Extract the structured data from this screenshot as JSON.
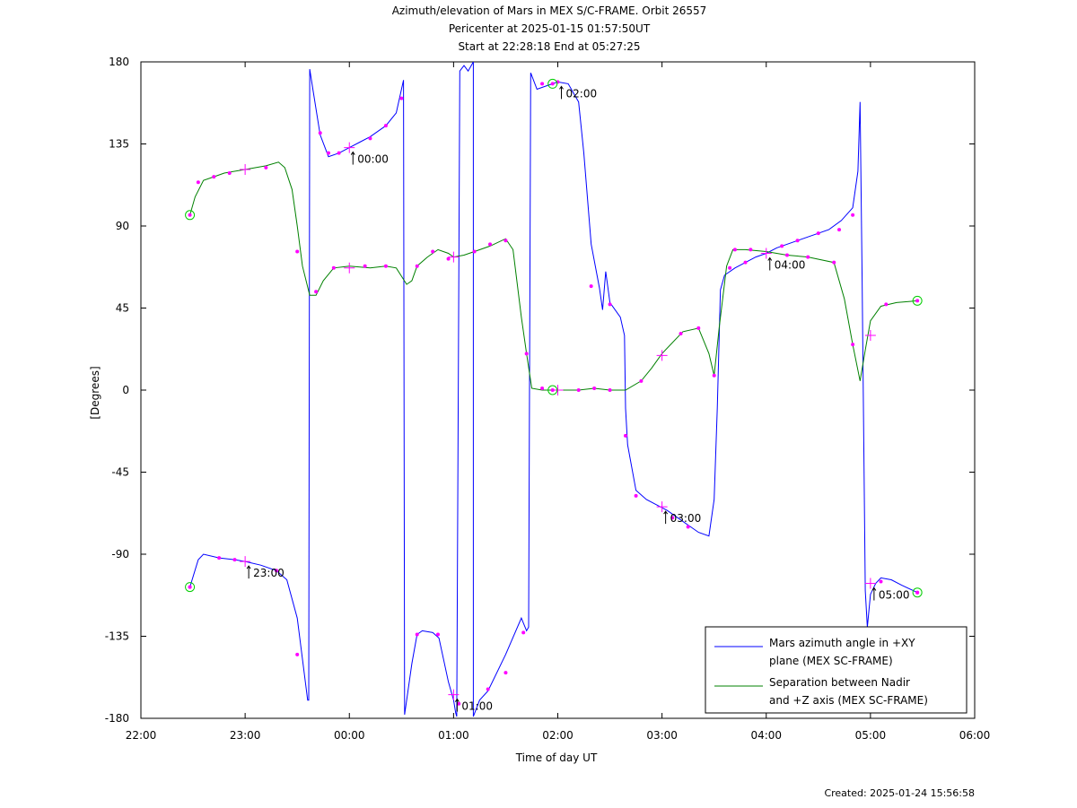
{
  "chart_data": {
    "type": "line",
    "title": "Azimuth/elevation of Mars in MEX S/C-FRAME.  Orbit 26557",
    "subtitle": [
      "Pericenter at 2025-01-15 01:57:50UT",
      "Start at 22:28:18 End at 05:27:25"
    ],
    "xlabel": "Time of day UT",
    "ylabel": "[Degrees]",
    "x_unit": "hours of day (22 = 22:00, 24 = 00:00 next day)",
    "xlim": [
      22,
      30
    ],
    "ylim": [
      -180,
      180
    ],
    "xticks": [
      {
        "value": 22,
        "label": "22:00"
      },
      {
        "value": 23,
        "label": "23:00"
      },
      {
        "value": 24,
        "label": "00:00"
      },
      {
        "value": 25,
        "label": "01:00"
      },
      {
        "value": 26,
        "label": "02:00"
      },
      {
        "value": 27,
        "label": "03:00"
      },
      {
        "value": 28,
        "label": "04:00"
      },
      {
        "value": 29,
        "label": "05:00"
      },
      {
        "value": 30,
        "label": "06:00"
      }
    ],
    "yticks": [
      {
        "value": 180,
        "label": "180"
      },
      {
        "value": 135,
        "label": "135"
      },
      {
        "value": 90,
        "label": "90"
      },
      {
        "value": 45,
        "label": "45"
      },
      {
        "value": 0,
        "label": "0"
      },
      {
        "value": -45,
        "label": "-45"
      },
      {
        "value": -90,
        "label": "-90"
      },
      {
        "value": -135,
        "label": "-135"
      },
      {
        "value": -180,
        "label": "-180"
      }
    ],
    "grid": false,
    "legend_position": "bottom-right",
    "series": [
      {
        "name": "Mars azimuth angle in +XY plane (MEX SC-FRAME)",
        "legend_lines": [
          "Mars azimuth angle in +XY",
          "plane (MEX SC-FRAME)"
        ],
        "color": "#0000ff",
        "points": [
          [
            22.47,
            -108
          ],
          [
            22.55,
            -93
          ],
          [
            22.6,
            -90
          ],
          [
            22.75,
            -92
          ],
          [
            22.9,
            -93
          ],
          [
            23.0,
            -94
          ],
          [
            23.15,
            -96
          ],
          [
            23.3,
            -99
          ],
          [
            23.4,
            -104
          ],
          [
            23.5,
            -125
          ],
          [
            23.6,
            -170
          ],
          [
            23.61,
            -170
          ],
          [
            23.62,
            176
          ],
          [
            23.65,
            165
          ],
          [
            23.72,
            140
          ],
          [
            23.8,
            128
          ],
          [
            23.9,
            130
          ],
          [
            24.0,
            133
          ],
          [
            24.1,
            136
          ],
          [
            24.2,
            139
          ],
          [
            24.35,
            145
          ],
          [
            24.45,
            152
          ],
          [
            24.52,
            170
          ],
          [
            24.53,
            -178
          ],
          [
            24.6,
            -150
          ],
          [
            24.65,
            -134
          ],
          [
            24.7,
            -132
          ],
          [
            24.8,
            -133
          ],
          [
            24.86,
            -136
          ],
          [
            24.95,
            -160
          ],
          [
            25.0,
            -170
          ],
          [
            25.02,
            -177
          ],
          [
            25.03,
            -179
          ],
          [
            25.06,
            175
          ],
          [
            25.1,
            178
          ],
          [
            25.14,
            175
          ],
          [
            25.19,
            180
          ],
          [
            25.19,
            -179
          ],
          [
            25.25,
            -170
          ],
          [
            25.33,
            -165
          ],
          [
            25.5,
            -145
          ],
          [
            25.65,
            -125
          ],
          [
            25.7,
            -132
          ],
          [
            25.72,
            -130
          ],
          [
            25.74,
            174
          ],
          [
            25.8,
            165
          ],
          [
            25.9,
            167
          ],
          [
            26.0,
            169
          ],
          [
            26.1,
            168
          ],
          [
            26.2,
            158
          ],
          [
            26.25,
            130
          ],
          [
            26.32,
            80
          ],
          [
            26.4,
            56
          ],
          [
            26.43,
            44
          ],
          [
            26.46,
            65
          ],
          [
            26.5,
            48
          ],
          [
            26.6,
            40
          ],
          [
            26.64,
            30
          ],
          [
            26.65,
            -10
          ],
          [
            26.67,
            -30
          ],
          [
            26.75,
            -55
          ],
          [
            26.85,
            -60
          ],
          [
            26.95,
            -63
          ],
          [
            27.05,
            -66
          ],
          [
            27.15,
            -70
          ],
          [
            27.25,
            -74
          ],
          [
            27.35,
            -78
          ],
          [
            27.45,
            -80
          ],
          [
            27.5,
            -60
          ],
          [
            27.53,
            -10
          ],
          [
            27.56,
            55
          ],
          [
            27.6,
            63
          ],
          [
            27.7,
            67
          ],
          [
            27.8,
            70
          ],
          [
            27.9,
            73
          ],
          [
            28.0,
            75
          ],
          [
            28.1,
            78
          ],
          [
            28.25,
            81
          ],
          [
            28.4,
            84
          ],
          [
            28.6,
            88
          ],
          [
            28.72,
            93
          ],
          [
            28.83,
            100
          ],
          [
            28.88,
            120
          ],
          [
            28.9,
            158
          ],
          [
            28.92,
            60
          ],
          [
            28.95,
            -110
          ],
          [
            28.97,
            -130
          ],
          [
            29.0,
            -112
          ],
          [
            29.05,
            -106
          ],
          [
            29.1,
            -103
          ],
          [
            29.2,
            -104
          ],
          [
            29.3,
            -107
          ],
          [
            29.45,
            -111
          ]
        ]
      },
      {
        "name": "Separation between Nadir and +Z axis (MEX SC-FRAME)",
        "legend_lines": [
          "Separation between Nadir",
          "and +Z axis (MEX SC-FRAME)"
        ],
        "color": "#008000",
        "points": [
          [
            22.47,
            96
          ],
          [
            22.52,
            106
          ],
          [
            22.6,
            115
          ],
          [
            22.7,
            117
          ],
          [
            22.8,
            119
          ],
          [
            23.0,
            121
          ],
          [
            23.2,
            123
          ],
          [
            23.32,
            125
          ],
          [
            23.38,
            122
          ],
          [
            23.45,
            110
          ],
          [
            23.5,
            90
          ],
          [
            23.55,
            68
          ],
          [
            23.62,
            52
          ],
          [
            23.68,
            52
          ],
          [
            23.75,
            60
          ],
          [
            23.85,
            67
          ],
          [
            24.0,
            68
          ],
          [
            24.2,
            67
          ],
          [
            24.35,
            68
          ],
          [
            24.45,
            67
          ],
          [
            24.55,
            58
          ],
          [
            24.6,
            60
          ],
          [
            24.65,
            68
          ],
          [
            24.75,
            73
          ],
          [
            24.85,
            77
          ],
          [
            24.95,
            75
          ],
          [
            25.0,
            73
          ],
          [
            25.1,
            74
          ],
          [
            25.2,
            76
          ],
          [
            25.35,
            79
          ],
          [
            25.5,
            83
          ],
          [
            25.57,
            77
          ],
          [
            25.65,
            40
          ],
          [
            25.7,
            20
          ],
          [
            25.75,
            1
          ],
          [
            25.85,
            0
          ],
          [
            26.0,
            0
          ],
          [
            26.2,
            0
          ],
          [
            26.35,
            1
          ],
          [
            26.5,
            0
          ],
          [
            26.65,
            0
          ],
          [
            26.8,
            5
          ],
          [
            26.9,
            12
          ],
          [
            27.0,
            20
          ],
          [
            27.2,
            32
          ],
          [
            27.35,
            34
          ],
          [
            27.45,
            20
          ],
          [
            27.5,
            8
          ],
          [
            27.55,
            35
          ],
          [
            27.62,
            68
          ],
          [
            27.68,
            77
          ],
          [
            27.8,
            77
          ],
          [
            28.0,
            76
          ],
          [
            28.2,
            74
          ],
          [
            28.4,
            73
          ],
          [
            28.65,
            70
          ],
          [
            28.75,
            50
          ],
          [
            28.83,
            25
          ],
          [
            28.9,
            5
          ],
          [
            28.95,
            22
          ],
          [
            29.0,
            38
          ],
          [
            29.1,
            46
          ],
          [
            29.25,
            48
          ],
          [
            29.45,
            49
          ]
        ]
      }
    ],
    "markers": {
      "azimuth": [
        [
          22.47,
          -108
        ],
        [
          22.75,
          -92
        ],
        [
          22.9,
          -93
        ],
        [
          23.3,
          -99
        ],
        [
          23.5,
          -145
        ],
        [
          23.72,
          141
        ],
        [
          23.8,
          130
        ],
        [
          23.9,
          130
        ],
        [
          24.2,
          138
        ],
        [
          24.35,
          145
        ],
        [
          24.5,
          160
        ],
        [
          24.65,
          -134
        ],
        [
          24.85,
          -134
        ],
        [
          25.05,
          -172
        ],
        [
          25.33,
          -164
        ],
        [
          25.5,
          -155
        ],
        [
          25.67,
          -133
        ],
        [
          25.85,
          168
        ],
        [
          26.0,
          169
        ],
        [
          26.32,
          57
        ],
        [
          26.5,
          47
        ],
        [
          26.65,
          -25
        ],
        [
          26.75,
          -58
        ],
        [
          27.1,
          -70
        ],
        [
          27.25,
          -75
        ],
        [
          27.65,
          67
        ],
        [
          27.8,
          70
        ],
        [
          28.15,
          79
        ],
        [
          28.3,
          82
        ],
        [
          28.5,
          86
        ],
        [
          28.7,
          88
        ],
        [
          28.83,
          96
        ],
        [
          29.1,
          -105
        ],
        [
          29.45,
          -111
        ]
      ],
      "separation": [
        [
          22.55,
          114
        ],
        [
          22.7,
          117
        ],
        [
          22.85,
          119
        ],
        [
          23.2,
          122
        ],
        [
          23.5,
          76
        ],
        [
          23.68,
          54
        ],
        [
          23.85,
          67
        ],
        [
          24.15,
          68
        ],
        [
          24.35,
          68
        ],
        [
          24.65,
          68
        ],
        [
          24.8,
          76
        ],
        [
          24.95,
          72
        ],
        [
          25.2,
          76
        ],
        [
          25.35,
          80
        ],
        [
          25.5,
          82
        ],
        [
          25.7,
          20
        ],
        [
          25.85,
          1
        ],
        [
          26.2,
          0
        ],
        [
          26.35,
          1
        ],
        [
          26.5,
          0
        ],
        [
          26.8,
          5
        ],
        [
          27.18,
          31
        ],
        [
          27.35,
          34
        ],
        [
          27.5,
          8
        ],
        [
          27.7,
          77
        ],
        [
          27.85,
          77
        ],
        [
          28.2,
          74
        ],
        [
          28.4,
          73
        ],
        [
          28.65,
          70
        ],
        [
          28.83,
          25
        ],
        [
          29.15,
          47
        ]
      ]
    },
    "plus_markers": [
      [
        23.0,
        121
      ],
      [
        23.0,
        -94
      ],
      [
        24.0,
        133
      ],
      [
        24.0,
        67
      ],
      [
        25.0,
        -167
      ],
      [
        25.0,
        73
      ],
      [
        26.0,
        0
      ],
      [
        27.0,
        -64
      ],
      [
        27.0,
        19
      ],
      [
        28.0,
        75
      ],
      [
        29.0,
        30
      ],
      [
        29.0,
        -106
      ]
    ],
    "circle_markers": [
      [
        22.47,
        96
      ],
      [
        22.47,
        -108
      ],
      [
        25.95,
        0
      ],
      [
        25.95,
        168
      ],
      [
        29.45,
        49
      ],
      [
        29.45,
        -111
      ]
    ],
    "time_annotations": [
      {
        "x": 23.0,
        "y": -94,
        "label": "23:00"
      },
      {
        "x": 24.0,
        "y": 133,
        "label": "00:00"
      },
      {
        "x": 25.0,
        "y": -167,
        "label": "01:00"
      },
      {
        "x": 26.0,
        "y": 169,
        "label": "02:00"
      },
      {
        "x": 27.0,
        "y": -64,
        "label": "03:00"
      },
      {
        "x": 28.0,
        "y": 75,
        "label": "04:00"
      },
      {
        "x": 29.0,
        "y": -106,
        "label": "05:00"
      }
    ],
    "colors": {
      "marker_dot": "#ff00ff",
      "circle": "#00cc00",
      "plus": "#ff00ff"
    }
  },
  "footer": {
    "created": "Created: 2025-01-24 15:56:58"
  }
}
